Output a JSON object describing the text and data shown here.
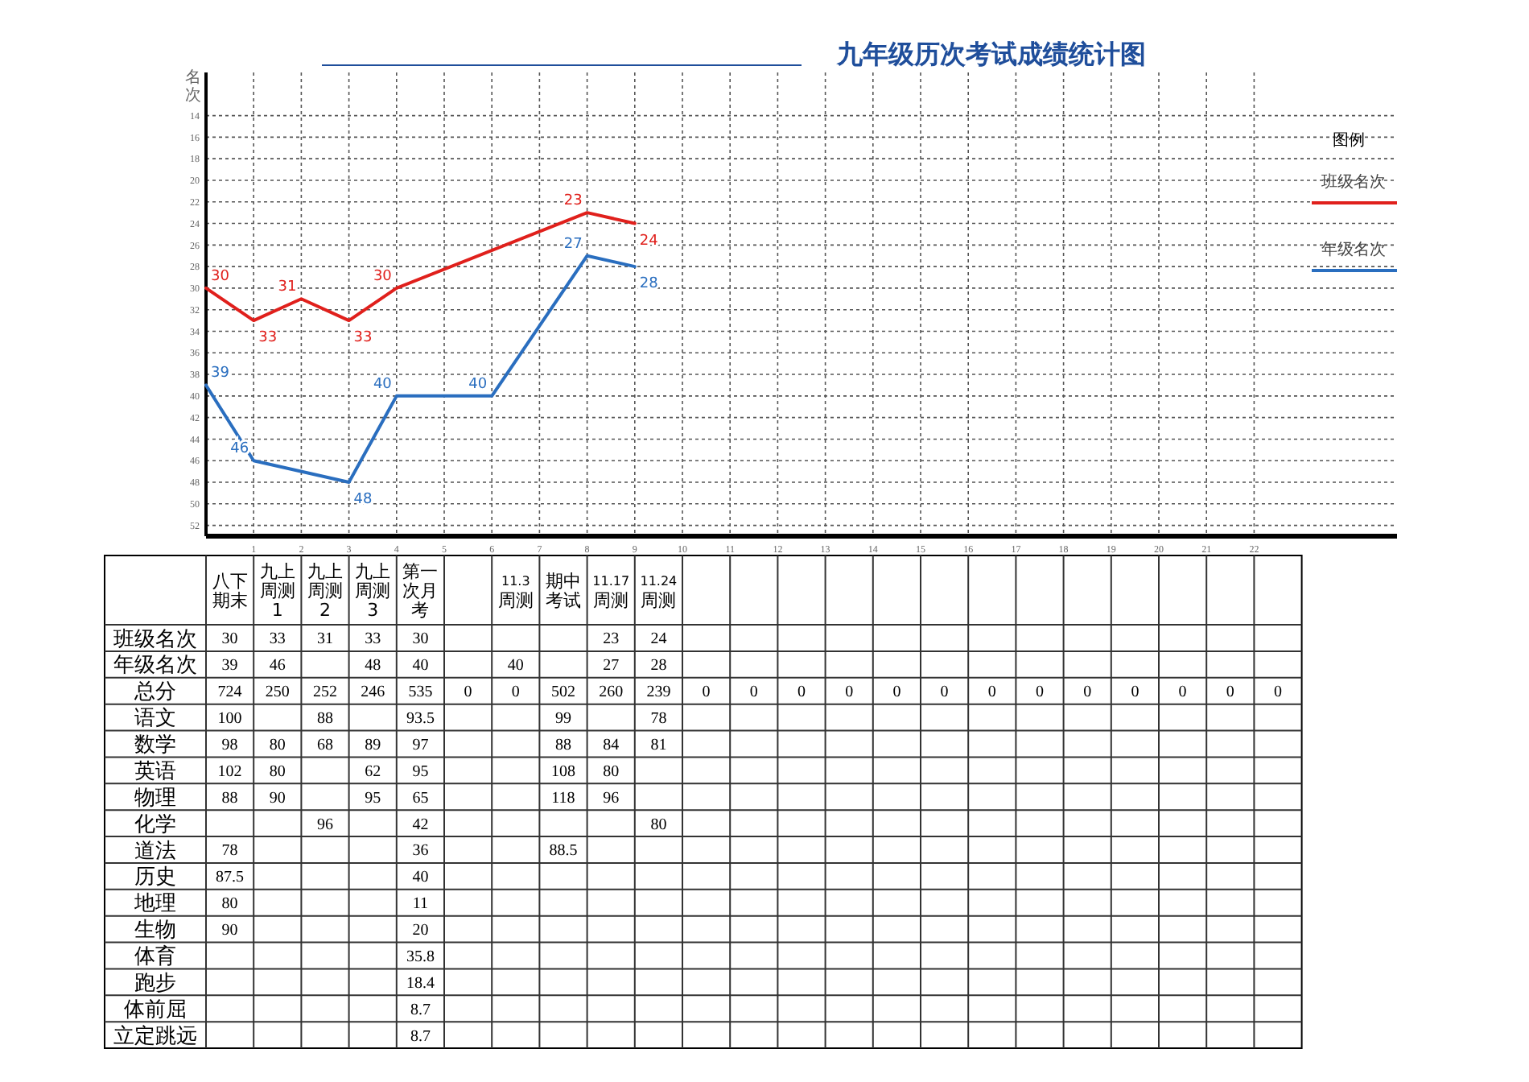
{
  "chart_data": [
    {
      "type": "line",
      "title": "九年级历次考试成绩统计图",
      "ylabel": "名次",
      "xlim": [
        0,
        25
      ],
      "xticks": [
        1,
        2,
        3,
        4,
        5,
        6,
        7,
        8,
        9,
        10,
        11,
        12,
        13,
        14,
        15,
        16,
        17,
        18,
        19,
        20,
        21,
        22
      ],
      "ylim": [
        53,
        10
      ],
      "yticks": [
        14,
        16,
        18,
        20,
        22,
        24,
        26,
        28,
        30,
        32,
        34,
        36,
        38,
        40,
        42,
        44,
        46,
        48,
        50,
        52
      ],
      "grid": true,
      "legend": "right",
      "legend_title": "图例",
      "data_labels": true,
      "marker": "none",
      "line_style": "solid",
      "series": [
        {
          "name": "班级名次",
          "color": "#e0201c",
          "x": [
            0,
            1,
            2,
            3,
            4,
            8,
            9
          ],
          "values": [
            30,
            33,
            31,
            33,
            30,
            23,
            24
          ]
        },
        {
          "name": "年级名次",
          "color": "#2a6ebf",
          "x": [
            0,
            1,
            3,
            4,
            6,
            8,
            9
          ],
          "values": [
            39,
            46,
            48,
            40,
            40,
            27,
            28
          ]
        }
      ]
    },
    {
      "type": "heatmap",
      "data_labels": true,
      "categories": [
        "八下期末",
        "九上周测1",
        "九上周测2",
        "九上周测3",
        "第一次月考",
        null,
        "11.3周测",
        "期中考试",
        "11.17周测",
        "11.24周测",
        null,
        null,
        null,
        null,
        null,
        null,
        null,
        null,
        null,
        null,
        null,
        null,
        null
      ],
      "y_categories": [
        "班级名次",
        "年级名次",
        "总分",
        "语文",
        "数学",
        "英语",
        "物理",
        "化学",
        "道法",
        "历史",
        "地理",
        "生物",
        "体育",
        "跑步",
        "体前屈",
        "立定跳远"
      ],
      "cells": [
        [
          30,
          33,
          31,
          33,
          30,
          null,
          null,
          null,
          23,
          24,
          null,
          null,
          null,
          null,
          null,
          null,
          null,
          null,
          null,
          null,
          null,
          null,
          null
        ],
        [
          39,
          46,
          null,
          48,
          40,
          null,
          40,
          null,
          27,
          28,
          null,
          null,
          null,
          null,
          null,
          null,
          null,
          null,
          null,
          null,
          null,
          null,
          null
        ],
        [
          724,
          250,
          252,
          246,
          535,
          0,
          0,
          502,
          260,
          239,
          0,
          0,
          0,
          0,
          0,
          0,
          0,
          0,
          0,
          0,
          0,
          0,
          0
        ],
        [
          100,
          null,
          88,
          null,
          93.5,
          null,
          null,
          99,
          null,
          78,
          null,
          null,
          null,
          null,
          null,
          null,
          null,
          null,
          null,
          null,
          null,
          null,
          null
        ],
        [
          98,
          80,
          68,
          89,
          97,
          null,
          null,
          88,
          84,
          81,
          null,
          null,
          null,
          null,
          null,
          null,
          null,
          null,
          null,
          null,
          null,
          null,
          null
        ],
        [
          102,
          80,
          null,
          62,
          95,
          null,
          null,
          108,
          80,
          null,
          null,
          null,
          null,
          null,
          null,
          null,
          null,
          null,
          null,
          null,
          null,
          null,
          null
        ],
        [
          88,
          90,
          null,
          95,
          65,
          null,
          null,
          118,
          96,
          null,
          null,
          null,
          null,
          null,
          null,
          null,
          null,
          null,
          null,
          null,
          null,
          null,
          null
        ],
        [
          null,
          null,
          96,
          null,
          42,
          null,
          null,
          null,
          null,
          80,
          null,
          null,
          null,
          null,
          null,
          null,
          null,
          null,
          null,
          null,
          null,
          null,
          null
        ],
        [
          78,
          null,
          null,
          null,
          36,
          null,
          null,
          88.5,
          null,
          null,
          null,
          null,
          null,
          null,
          null,
          null,
          null,
          null,
          null,
          null,
          null,
          null,
          null
        ],
        [
          87.5,
          null,
          null,
          null,
          40,
          null,
          null,
          null,
          null,
          null,
          null,
          null,
          null,
          null,
          null,
          null,
          null,
          null,
          null,
          null,
          null,
          null,
          null
        ],
        [
          80,
          null,
          null,
          null,
          11,
          null,
          null,
          null,
          null,
          null,
          null,
          null,
          null,
          null,
          null,
          null,
          null,
          null,
          null,
          null,
          null,
          null,
          null
        ],
        [
          90,
          null,
          null,
          null,
          20,
          null,
          null,
          null,
          null,
          null,
          null,
          null,
          null,
          null,
          null,
          null,
          null,
          null,
          null,
          null,
          null,
          null,
          null
        ],
        [
          null,
          null,
          null,
          null,
          35.8,
          null,
          null,
          null,
          null,
          null,
          null,
          null,
          null,
          null,
          null,
          null,
          null,
          null,
          null,
          null,
          null,
          null,
          null
        ],
        [
          null,
          null,
          null,
          null,
          18.4,
          null,
          null,
          null,
          null,
          null,
          null,
          null,
          null,
          null,
          null,
          null,
          null,
          null,
          null,
          null,
          null,
          null,
          null
        ],
        [
          null,
          null,
          null,
          null,
          8.7,
          null,
          null,
          null,
          null,
          null,
          null,
          null,
          null,
          null,
          null,
          null,
          null,
          null,
          null,
          null,
          null,
          null,
          null
        ],
        [
          null,
          null,
          null,
          null,
          8.7,
          null,
          null,
          null,
          null,
          null,
          null,
          null,
          null,
          null,
          null,
          null,
          null,
          null,
          null,
          null,
          null,
          null,
          null
        ]
      ]
    }
  ]
}
